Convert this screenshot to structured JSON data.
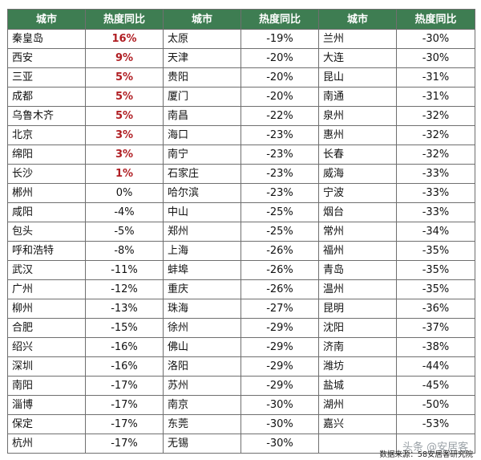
{
  "table": {
    "headers": [
      "城市",
      "热度同比",
      "城市",
      "热度同比",
      "城市",
      "热度同比"
    ],
    "columns": [
      [
        {
          "city": "秦皇岛",
          "value": "16%"
        },
        {
          "city": "西安",
          "value": "9%"
        },
        {
          "city": "三亚",
          "value": "5%"
        },
        {
          "city": "成都",
          "value": "5%"
        },
        {
          "city": "乌鲁木齐",
          "value": "5%"
        },
        {
          "city": "北京",
          "value": "3%"
        },
        {
          "city": "绵阳",
          "value": "3%"
        },
        {
          "city": "长沙",
          "value": "1%"
        },
        {
          "city": "郴州",
          "value": "0%"
        },
        {
          "city": "咸阳",
          "value": "-4%"
        },
        {
          "city": "包头",
          "value": "-5%"
        },
        {
          "city": "呼和浩特",
          "value": "-8%"
        },
        {
          "city": "武汉",
          "value": "-11%"
        },
        {
          "city": "广州",
          "value": "-12%"
        },
        {
          "city": "柳州",
          "value": "-13%"
        },
        {
          "city": "合肥",
          "value": "-15%"
        },
        {
          "city": "绍兴",
          "value": "-16%"
        },
        {
          "city": "深圳",
          "value": "-16%"
        },
        {
          "city": "南阳",
          "value": "-17%"
        },
        {
          "city": "淄博",
          "value": "-17%"
        },
        {
          "city": "保定",
          "value": "-17%"
        },
        {
          "city": "杭州",
          "value": "-17%"
        }
      ],
      [
        {
          "city": "太原",
          "value": "-19%"
        },
        {
          "city": "天津",
          "value": "-20%"
        },
        {
          "city": "贵阳",
          "value": "-20%"
        },
        {
          "city": "厦门",
          "value": "-20%"
        },
        {
          "city": "南昌",
          "value": "-22%"
        },
        {
          "city": "海口",
          "value": "-23%"
        },
        {
          "city": "南宁",
          "value": "-23%"
        },
        {
          "city": "石家庄",
          "value": "-23%"
        },
        {
          "city": "哈尔滨",
          "value": "-23%"
        },
        {
          "city": "中山",
          "value": "-25%"
        },
        {
          "city": "郑州",
          "value": "-25%"
        },
        {
          "city": "上海",
          "value": "-26%"
        },
        {
          "city": "蚌埠",
          "value": "-26%"
        },
        {
          "city": "重庆",
          "value": "-26%"
        },
        {
          "city": "珠海",
          "value": "-27%"
        },
        {
          "city": "徐州",
          "value": "-29%"
        },
        {
          "city": "佛山",
          "value": "-29%"
        },
        {
          "city": "洛阳",
          "value": "-29%"
        },
        {
          "city": "苏州",
          "value": "-29%"
        },
        {
          "city": "南京",
          "value": "-30%"
        },
        {
          "city": "东莞",
          "value": "-30%"
        },
        {
          "city": "无锡",
          "value": "-30%"
        }
      ],
      [
        {
          "city": "兰州",
          "value": "-30%"
        },
        {
          "city": "大连",
          "value": "-30%"
        },
        {
          "city": "昆山",
          "value": "-31%"
        },
        {
          "city": "南通",
          "value": "-31%"
        },
        {
          "city": "泉州",
          "value": "-32%"
        },
        {
          "city": "惠州",
          "value": "-32%"
        },
        {
          "city": "长春",
          "value": "-32%"
        },
        {
          "city": "威海",
          "value": "-33%"
        },
        {
          "city": "宁波",
          "value": "-33%"
        },
        {
          "city": "烟台",
          "value": "-33%"
        },
        {
          "city": "常州",
          "value": "-34%"
        },
        {
          "city": "福州",
          "value": "-35%"
        },
        {
          "city": "青岛",
          "value": "-35%"
        },
        {
          "city": "温州",
          "value": "-35%"
        },
        {
          "city": "昆明",
          "value": "-36%"
        },
        {
          "city": "沈阳",
          "value": "-37%"
        },
        {
          "city": "济南",
          "value": "-38%"
        },
        {
          "city": "潍坊",
          "value": "-44%"
        },
        {
          "city": "盐城",
          "value": "-45%"
        },
        {
          "city": "湖州",
          "value": "-50%"
        },
        {
          "city": "嘉兴",
          "value": "-53%"
        },
        {
          "city": "",
          "value": ""
        }
      ]
    ]
  },
  "footer": {
    "watermark": "头条 @安居客",
    "source": "数据来源：58安居客研究院"
  },
  "colors": {
    "header_bg": "#3e7d52",
    "header_text": "#ffffff",
    "positive_value": "#b01e23",
    "border": "#6f6f6f"
  }
}
